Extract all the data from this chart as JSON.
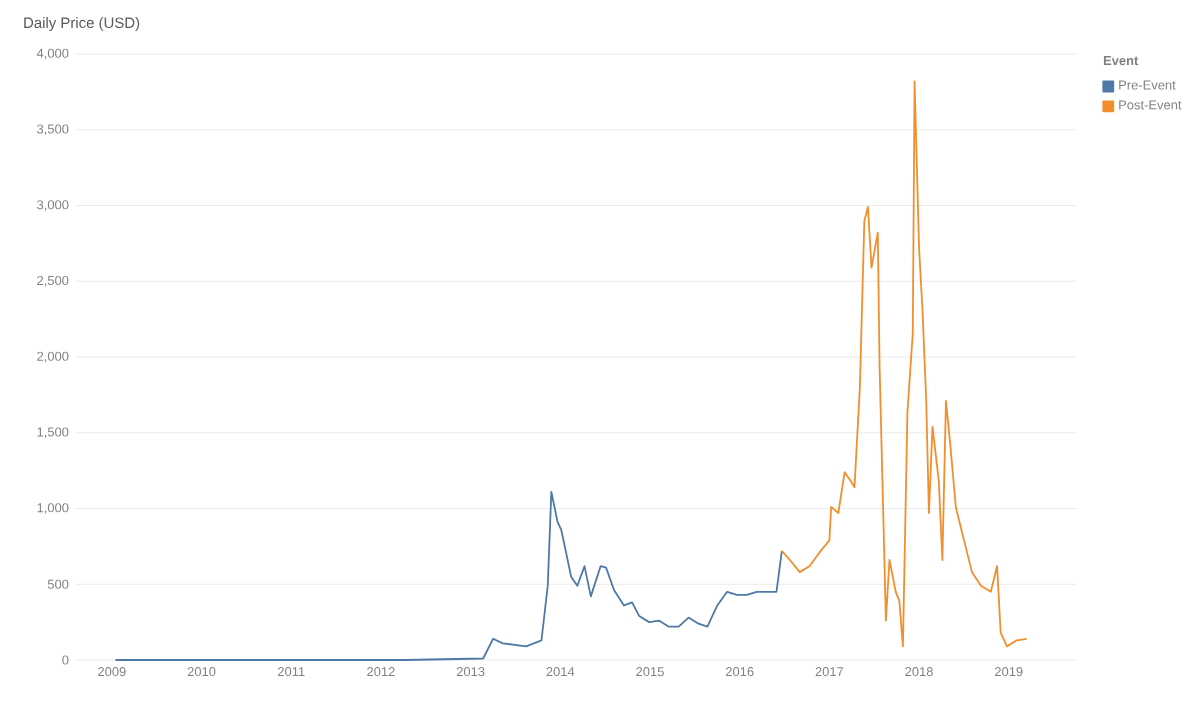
{
  "chart_data": {
    "type": "line",
    "title": "Daily Price (USD)",
    "legend_title": "Event",
    "legend": "top right",
    "grid": "y",
    "xlim": [
      2008.6,
      2019.75
    ],
    "xticks": [
      {
        "value": 2009,
        "label": "2009"
      },
      {
        "value": 2010,
        "label": "2010"
      },
      {
        "value": 2011,
        "label": "2011"
      },
      {
        "value": 2012,
        "label": "2012"
      },
      {
        "value": 2013,
        "label": "2013"
      },
      {
        "value": 2014,
        "label": "2014"
      },
      {
        "value": 2015,
        "label": "2015"
      },
      {
        "value": 2016,
        "label": "2016"
      },
      {
        "value": 2017,
        "label": "2017"
      },
      {
        "value": 2018,
        "label": "2018"
      },
      {
        "value": 2019,
        "label": "2019"
      }
    ],
    "ylim": [
      0,
      4000
    ],
    "yticks": [
      0,
      500,
      {
        "value": 1000,
        "label": "1,000"
      },
      {
        "value": 1500,
        "label": "1,500"
      },
      {
        "value": 2000,
        "label": "2,000"
      },
      {
        "value": 2500,
        "label": "2,500"
      },
      {
        "value": 3000,
        "label": "3,000"
      },
      {
        "value": 3500,
        "label": "3,500"
      },
      {
        "value": 4000,
        "label": "4,000"
      }
    ],
    "series": [
      {
        "name": "Pre-Event",
        "color": "#4e79a7",
        "x": [
          2009.04,
          2011.18,
          2012.27,
          2013.14,
          2013.25,
          2013.36,
          2013.62,
          2013.79,
          2013.86,
          2013.9,
          2013.97,
          2014.01,
          2014.05,
          2014.12,
          2014.19,
          2014.27,
          2014.34,
          2014.45,
          2014.51,
          2014.6,
          2014.71,
          2014.8,
          2014.88,
          2014.99,
          2015.1,
          2015.21,
          2015.32,
          2015.43,
          2015.54,
          2015.64,
          2015.75,
          2015.86,
          2015.97,
          2016.08,
          2016.19,
          2016.41,
          2016.47
        ],
        "values": [
          0,
          0,
          0,
          10,
          140,
          110,
          90,
          130,
          490,
          1110,
          910,
          860,
          750,
          550,
          490,
          620,
          420,
          620,
          610,
          460,
          360,
          380,
          290,
          250,
          260,
          220,
          220,
          280,
          240,
          220,
          360,
          450,
          430,
          430,
          450,
          450,
          720
        ]
      },
      {
        "name": "Post-Event",
        "color": "#f28e2b",
        "x": [
          2016.47,
          2016.56,
          2016.67,
          2016.78,
          2016.89,
          2017.0,
          2017.02,
          2017.1,
          2017.17,
          2017.24,
          2017.28,
          2017.34,
          2017.39,
          2017.43,
          2017.47,
          2017.54,
          2017.56,
          2017.61,
          2017.63,
          2017.67,
          2017.74,
          2017.78,
          2017.82,
          2017.87,
          2017.93,
          2017.95,
          2018.0,
          2018.04,
          2018.08,
          2018.11,
          2018.15,
          2018.22,
          2018.26,
          2018.3,
          2018.35,
          2018.41,
          2018.48,
          2018.59,
          2018.69,
          2018.8,
          2018.87,
          2018.91,
          2018.98,
          2019.09,
          2019.2
        ],
        "values": [
          720,
          660,
          580,
          620,
          710,
          790,
          1010,
          970,
          1240,
          1180,
          1140,
          1800,
          2900,
          2990,
          2590,
          2820,
          1930,
          750,
          260,
          660,
          450,
          390,
          90,
          1630,
          2160,
          3820,
          2720,
          2290,
          1710,
          970,
          1540,
          1180,
          660,
          1710,
          1410,
          1010,
          840,
          580,
          490,
          450,
          620,
          180,
          90,
          130,
          140
        ]
      }
    ]
  }
}
